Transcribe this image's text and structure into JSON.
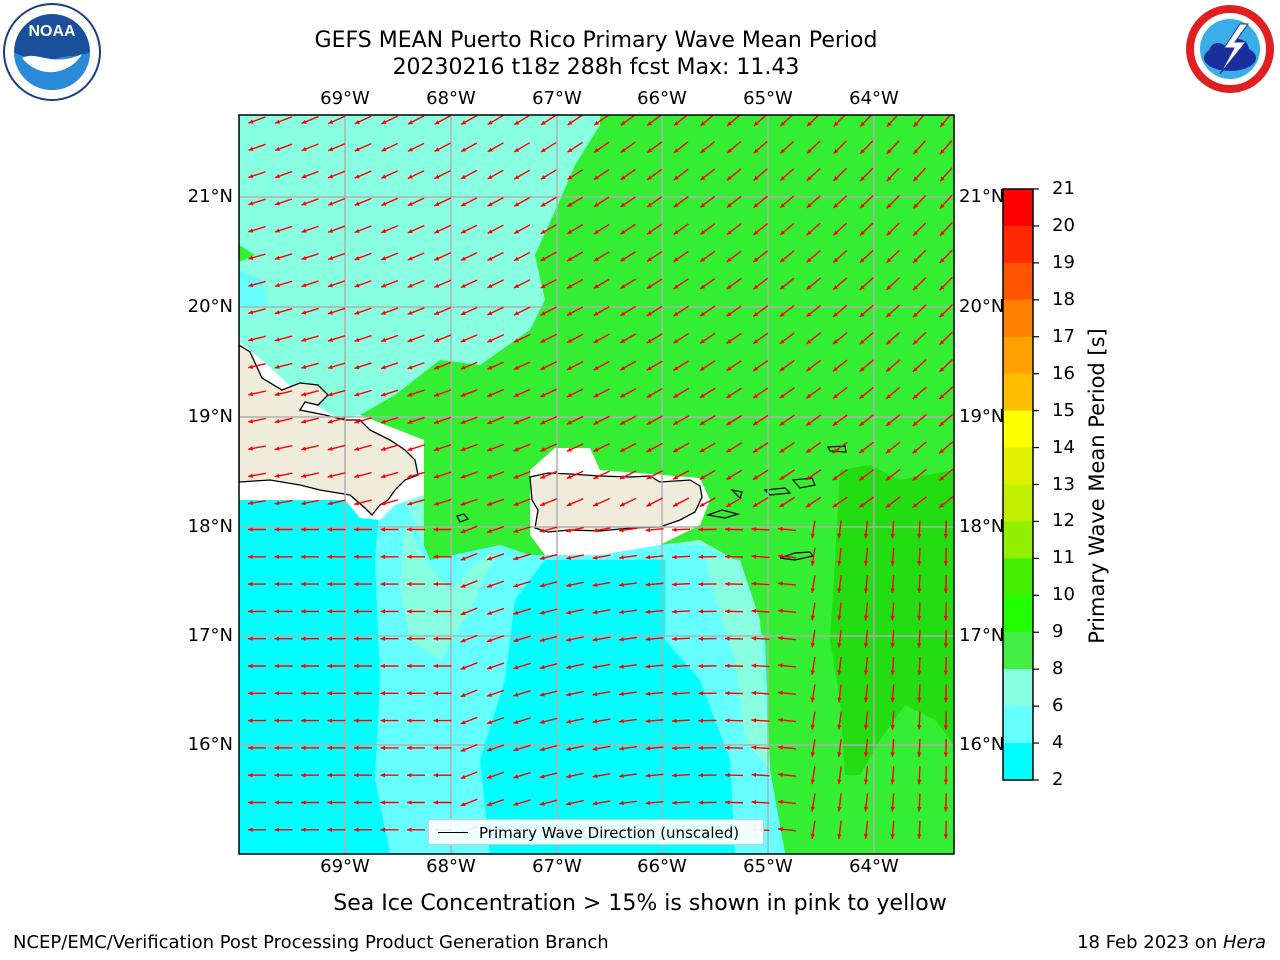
{
  "title": {
    "line1": "GEFS MEAN Puerto Rico Primary Wave Mean Period",
    "line2": "20230216 t18z 288h fcst   Max: 11.43"
  },
  "map": {
    "lon_labels": [
      "69°W",
      "68°W",
      "67°W",
      "66°W",
      "65°W",
      "64°W"
    ],
    "lat_labels": [
      "21°N",
      "20°N",
      "19°N",
      "18°N",
      "17°N",
      "16°N"
    ],
    "land_color": "#f0ecdc",
    "arrow_color": "#ff0000"
  },
  "legend": {
    "label": "Primary Wave Direction (unscaled)"
  },
  "colorbar": {
    "title": "Primary Wave Mean Period [s]",
    "ticks": [
      "21",
      "20",
      "19",
      "18",
      "17",
      "16",
      "15",
      "14",
      "13",
      "12",
      "11",
      "10",
      "9",
      "8",
      "6",
      "4",
      "2"
    ],
    "colors": [
      "#ff0000",
      "#ff2a00",
      "#ff5500",
      "#ff7f00",
      "#ff9f00",
      "#ffbf00",
      "#ffff00",
      "#e0f000",
      "#c0f000",
      "#90f000",
      "#44ee00",
      "#22ff00",
      "#44ee44",
      "#88ffe0",
      "#66ffff",
      "#00ffff",
      "#0080ff",
      "#0000ff"
    ]
  },
  "note": "Sea Ice Concentration > 15% is shown in pink to yellow",
  "footer": {
    "left": "NCEP/EMC/Verification Post Processing Product Generation Branch",
    "right_prefix": "18 Feb 2023 on ",
    "right_italic": "Hera"
  },
  "logos": {
    "noaa": "NOAA",
    "nws": "NATIONAL WEATHER SERVICE"
  }
}
